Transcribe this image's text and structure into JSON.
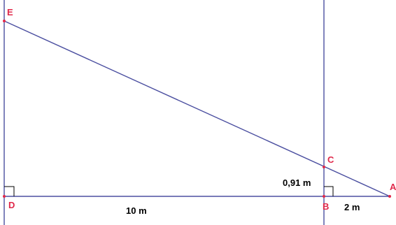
{
  "diagram": {
    "points": {
      "E": "E",
      "C": "C",
      "A": "A",
      "D": "D",
      "B": "B"
    },
    "lengths": {
      "DB": "10 m",
      "BA": "2 m",
      "BC": "0,91 m"
    },
    "colors": {
      "line": "#4b4fa0",
      "point_label": "#e0284a",
      "point_marker": "#e0284a",
      "text": "#000000"
    }
  }
}
